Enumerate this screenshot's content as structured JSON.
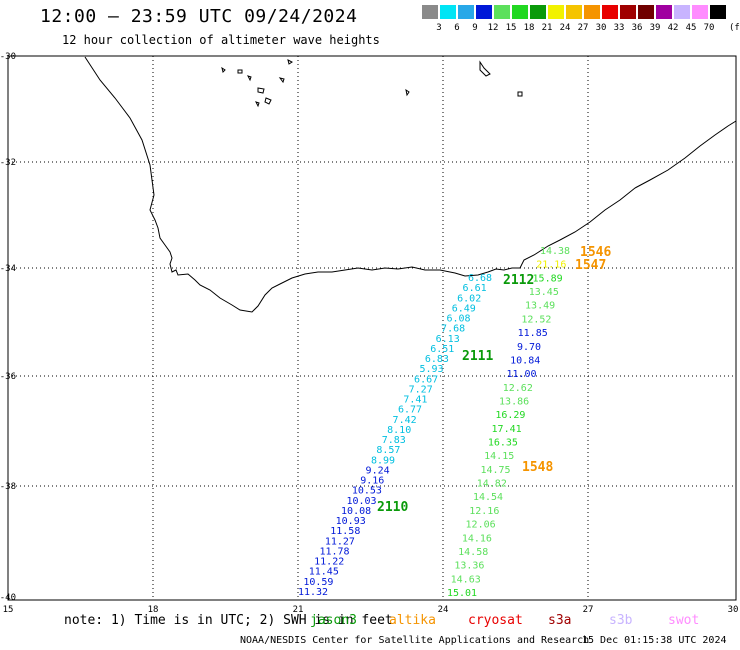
{
  "header": {
    "title": "12:00 – 23:59 UTC 09/24/2024",
    "subtitle": "12 hour collection of altimeter wave heights"
  },
  "colors": {
    "gray": "#8a8a8a",
    "cyan": "#00e5f5",
    "lightblue": "#28a8e8",
    "blue": "#0018d8",
    "green1": "#22d822",
    "green2": "#5ce05c",
    "green3": "#0a9a0a",
    "yellow": "#f2f200",
    "gold": "#f5c400",
    "orange": "#f59400",
    "red": "#e80000",
    "darkred": "#a00000",
    "maroon": "#700000",
    "purple": "#a000a0",
    "lavender": "#c8b4ff",
    "pink": "#ff8cff",
    "black": "#000000"
  },
  "scale": {
    "labels": [
      "3",
      "6",
      "9",
      "12",
      "15",
      "18",
      "21",
      "24",
      "27",
      "30",
      "33",
      "36",
      "39",
      "42",
      "45",
      "70"
    ],
    "unit": "(ft)",
    "swatches": [
      "#8a8a8a",
      "#00e5f5",
      "#28a8e8",
      "#0018d8",
      "#5ce05c",
      "#22d822",
      "#0a9a0a",
      "#f2f200",
      "#f5c400",
      "#f59400",
      "#e80000",
      "#a00000",
      "#700000",
      "#a000a0",
      "#c8b4ff",
      "#ff8cff",
      "#000000"
    ]
  },
  "map": {
    "lon_ticks": [
      "15",
      "18",
      "21",
      "24",
      "27",
      "30"
    ],
    "lat_ticks": [
      "-30",
      "-32",
      "-34",
      "-36",
      "-38",
      "-40"
    ]
  },
  "tracks": {
    "west": {
      "readings": [
        {
          "v": "6.68",
          "c": "#00bfe0"
        },
        {
          "v": "6.61",
          "c": "#00bfe0"
        },
        {
          "v": "6.02",
          "c": "#00bfe0"
        },
        {
          "v": "6.49",
          "c": "#00bfe0"
        },
        {
          "v": "6.08",
          "c": "#00bfe0"
        },
        {
          "v": "7.68",
          "c": "#00bfe0"
        },
        {
          "v": "6.13",
          "c": "#00bfe0"
        },
        {
          "v": "6.51",
          "c": "#00bfe0"
        },
        {
          "v": "6.83",
          "c": "#00bfe0"
        },
        {
          "v": "5.93",
          "c": "#00bfe0"
        },
        {
          "v": "6.67",
          "c": "#00bfe0"
        },
        {
          "v": "7.27",
          "c": "#00bfe0"
        },
        {
          "v": "7.41",
          "c": "#00bfe0"
        },
        {
          "v": "6.77",
          "c": "#00bfe0"
        },
        {
          "v": "7.42",
          "c": "#00bfe0"
        },
        {
          "v": "8.10",
          "c": "#00bfe0"
        },
        {
          "v": "7.83",
          "c": "#00bfe0"
        },
        {
          "v": "8.57",
          "c": "#00bfe0"
        },
        {
          "v": "8.99",
          "c": "#00bfe0"
        },
        {
          "v": "9.24",
          "c": "#0018d8"
        },
        {
          "v": "9.16",
          "c": "#0018d8"
        },
        {
          "v": "10.53",
          "c": "#0018d8"
        },
        {
          "v": "10.03",
          "c": "#0018d8"
        },
        {
          "v": "10.08",
          "c": "#0018d8"
        },
        {
          "v": "10.93",
          "c": "#0018d8"
        },
        {
          "v": "11.58",
          "c": "#0018d8"
        },
        {
          "v": "11.27",
          "c": "#0018d8"
        },
        {
          "v": "11.78",
          "c": "#0018d8"
        },
        {
          "v": "11.22",
          "c": "#0018d8"
        },
        {
          "v": "11.45",
          "c": "#0018d8"
        },
        {
          "v": "10.59",
          "c": "#0018d8"
        },
        {
          "v": "11.32",
          "c": "#0018d8"
        }
      ]
    },
    "east": {
      "readings": [
        {
          "v": "14.38",
          "c": "#5ce05c"
        },
        {
          "v": "21.16",
          "c": "#f2f200"
        },
        {
          "v": "15.89",
          "c": "#22d822"
        },
        {
          "v": "13.45",
          "c": "#5ce05c"
        },
        {
          "v": "13.49",
          "c": "#5ce05c"
        },
        {
          "v": "12.52",
          "c": "#5ce05c"
        },
        {
          "v": "11.85",
          "c": "#0018d8"
        },
        {
          "v": "9.70",
          "c": "#0018d8"
        },
        {
          "v": "10.84",
          "c": "#0018d8"
        },
        {
          "v": "11.00",
          "c": "#0018d8"
        },
        {
          "v": "12.62",
          "c": "#5ce05c"
        },
        {
          "v": "13.86",
          "c": "#5ce05c"
        },
        {
          "v": "16.29",
          "c": "#22d822"
        },
        {
          "v": "17.41",
          "c": "#22d822"
        },
        {
          "v": "16.35",
          "c": "#22d822"
        },
        {
          "v": "14.15",
          "c": "#5ce05c"
        },
        {
          "v": "14.75",
          "c": "#5ce05c"
        },
        {
          "v": "14.82",
          "c": "#5ce05c"
        },
        {
          "v": "14.54",
          "c": "#5ce05c"
        },
        {
          "v": "12.16",
          "c": "#5ce05c"
        },
        {
          "v": "12.06",
          "c": "#5ce05c"
        },
        {
          "v": "14.16",
          "c": "#5ce05c"
        },
        {
          "v": "14.58",
          "c": "#5ce05c"
        },
        {
          "v": "13.36",
          "c": "#5ce05c"
        },
        {
          "v": "14.63",
          "c": "#5ce05c"
        },
        {
          "v": "15.01",
          "c": "#22d822"
        }
      ]
    },
    "time_labels": [
      {
        "t": "1546",
        "c": "#f59400"
      },
      {
        "t": "1547",
        "c": "#f59400"
      },
      {
        "t": "2112",
        "c": "#0a9a0a"
      },
      {
        "t": "2111",
        "c": "#0a9a0a"
      },
      {
        "t": "1548",
        "c": "#f59400"
      },
      {
        "t": "2110",
        "c": "#0a9a0a"
      }
    ]
  },
  "footer": {
    "note": "note: 1) Time is in UTC; 2) SWH is in feet",
    "satellites": [
      {
        "name": "jason3",
        "c": "#0a9a0a"
      },
      {
        "name": "altika",
        "c": "#f59400"
      },
      {
        "name": "cryosat",
        "c": "#e80000"
      },
      {
        "name": "s3a",
        "c": "#a00000"
      },
      {
        "name": "s3b",
        "c": "#c8b4ff"
      },
      {
        "name": "swot",
        "c": "#ff8cff"
      }
    ],
    "credit": "NOAA/NESDIS Center for Satellite Applications and Research",
    "timestamp": "15 Dec 01:15:38 UTC 2024"
  }
}
